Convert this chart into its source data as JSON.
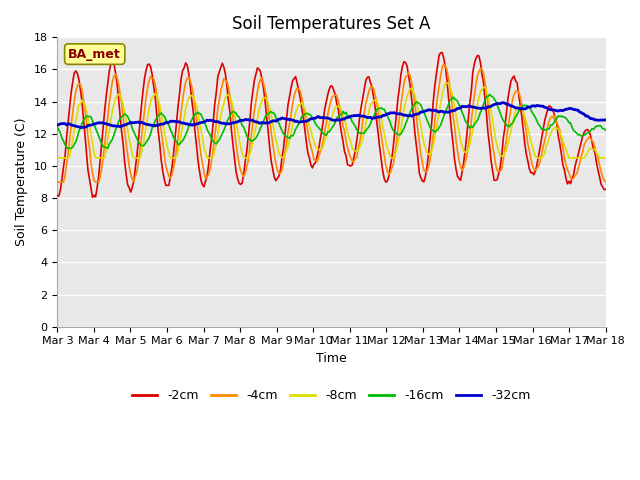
{
  "title": "Soil Temperatures Set A",
  "xlabel": "Time",
  "ylabel": "Soil Temperature (C)",
  "annotation": "BA_met",
  "ylim": [
    0,
    18
  ],
  "yticks": [
    0,
    2,
    4,
    6,
    8,
    10,
    12,
    14,
    16,
    18
  ],
  "x_labels": [
    "Mar 3",
    "Mar 4",
    "Mar 5",
    "Mar 6",
    "Mar 7",
    "Mar 8",
    "Mar 9",
    "Mar 10",
    "Mar 11",
    "Mar 12",
    "Mar 13",
    "Mar 14",
    "Mar 15",
    "Mar 16",
    "Mar 17",
    "Mar 18"
  ],
  "series_labels": [
    "-2cm",
    "-4cm",
    "-8cm",
    "-16cm",
    "-32cm"
  ],
  "series_colors": [
    "#dd0000",
    "#ff8800",
    "#dddd00",
    "#00bb00",
    "#0000cc"
  ],
  "series_linewidths": [
    1.2,
    1.2,
    1.2,
    1.2,
    2.0
  ],
  "background_color": "#ffffff",
  "plot_bg_color": "#e8e8e8",
  "grid_color": "#ffffff",
  "title_fontsize": 12,
  "axis_fontsize": 9,
  "tick_fontsize": 8
}
